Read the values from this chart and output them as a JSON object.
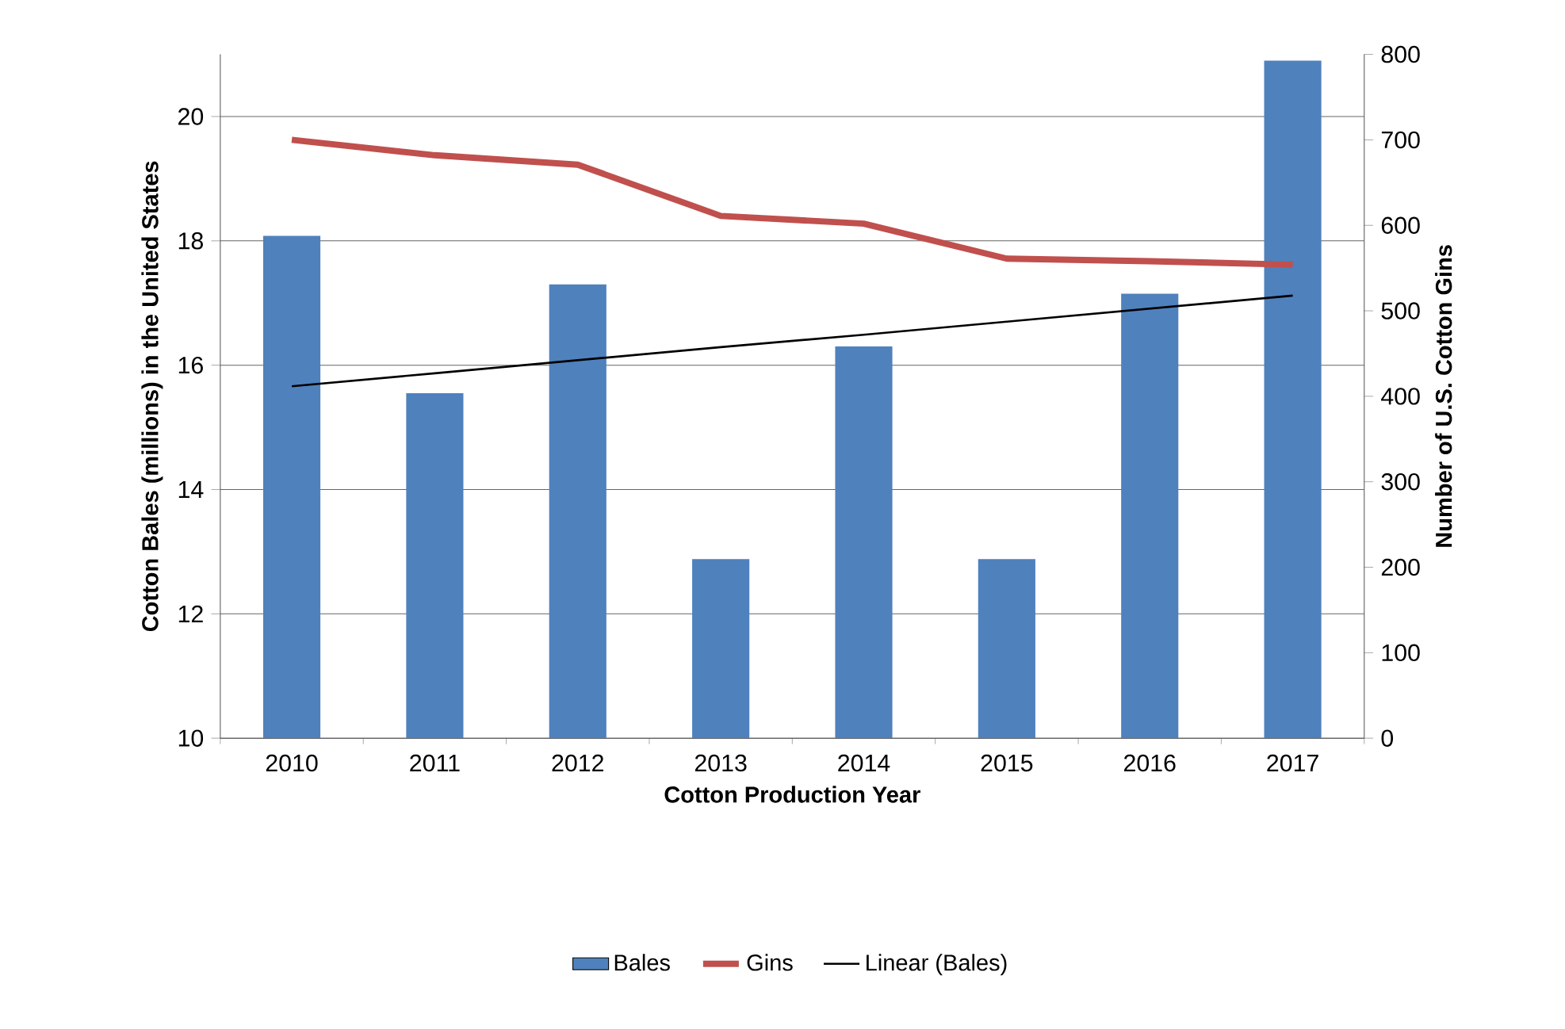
{
  "chart_data": {
    "type": "bar",
    "xlabel": "Cotton Production Year",
    "ylabel": "Cotton Bales (millions) in the United States",
    "y2label": "Number of U.S. Cotton Gins",
    "categories": [
      "2010",
      "2011",
      "2012",
      "2013",
      "2014",
      "2015",
      "2016",
      "2017"
    ],
    "series": [
      {
        "name": "Bales",
        "color": "#4f81bd",
        "values": [
          18.08,
          15.55,
          17.3,
          12.88,
          16.3,
          12.88,
          17.15,
          20.9
        ]
      },
      {
        "name": "Gins",
        "type": "line",
        "axis": "y2",
        "color": "#c0504d",
        "values": [
          700,
          682,
          671,
          611,
          602,
          561,
          558,
          554
        ]
      },
      {
        "name": "Linear (Bales)",
        "type": "line",
        "color": "#000000",
        "values": [
          15.66,
          15.87,
          16.08,
          16.29,
          16.49,
          16.7,
          16.91,
          17.12
        ]
      }
    ],
    "ylim": [
      10,
      21
    ],
    "yticks": [
      10,
      12,
      14,
      16,
      18,
      20
    ],
    "y2lim": [
      0,
      800
    ],
    "y2ticks": [
      0,
      100,
      200,
      300,
      400,
      500,
      600,
      700,
      800
    ],
    "grid": "y",
    "legend": "bottom"
  }
}
